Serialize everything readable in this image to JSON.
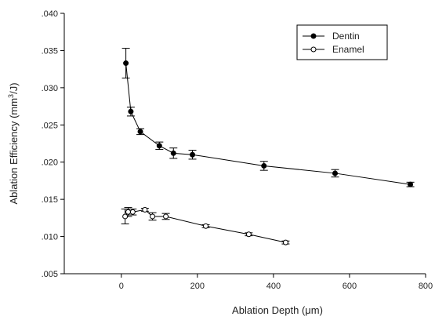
{
  "chart_data": {
    "type": "scatter",
    "xlabel_main": "Ablation Depth (",
    "xlabel_unit": "μm",
    "xlabel_close": ")",
    "ylabel_main": "Ablation Efficiency (mm",
    "ylabel_sup": "3",
    "ylabel_close": "/J)",
    "xlim": [
      -150,
      800
    ],
    "ylim": [
      0.005,
      0.04
    ],
    "x_ticks": [
      0,
      200,
      400,
      600,
      800
    ],
    "x_tick_labels": [
      "0",
      "200",
      "400",
      "600",
      "800"
    ],
    "y_ticks": [
      0.005,
      0.01,
      0.015,
      0.02,
      0.025,
      0.03,
      0.035,
      0.04
    ],
    "y_tick_labels": [
      ".005",
      ".010",
      ".015",
      ".020",
      ".025",
      ".030",
      ".035",
      ".040"
    ],
    "legend_position": "top-right",
    "grid": false,
    "series": [
      {
        "name": "Dentin",
        "marker": "filled-circle",
        "color": "#000000",
        "points": [
          {
            "x": 12,
            "y": 0.0333,
            "err": 0.002
          },
          {
            "x": 25,
            "y": 0.0268,
            "err": 0.0006
          },
          {
            "x": 50,
            "y": 0.0241,
            "err": 0.0004
          },
          {
            "x": 100,
            "y": 0.0222,
            "err": 0.0005
          },
          {
            "x": 137,
            "y": 0.0212,
            "err": 0.0007
          },
          {
            "x": 187,
            "y": 0.021,
            "err": 0.0006
          },
          {
            "x": 375,
            "y": 0.0195,
            "err": 0.0006
          },
          {
            "x": 562,
            "y": 0.0185,
            "err": 0.0005
          },
          {
            "x": 760,
            "y": 0.017,
            "err": 0.0003
          }
        ]
      },
      {
        "name": "Enamel",
        "marker": "open-circle",
        "color": "#000000",
        "points": [
          {
            "x": 10,
            "y": 0.0127,
            "err": 0.001
          },
          {
            "x": 18,
            "y": 0.0133,
            "err": 0.0006
          },
          {
            "x": 30,
            "y": 0.0133,
            "err": 0.0004
          },
          {
            "x": 62,
            "y": 0.0136,
            "err": 0.0002
          },
          {
            "x": 82,
            "y": 0.0127,
            "err": 0.0005
          },
          {
            "x": 117,
            "y": 0.0127,
            "err": 0.0004
          },
          {
            "x": 222,
            "y": 0.0114,
            "err": 0.0002
          },
          {
            "x": 335,
            "y": 0.0103,
            "err": 0.0002
          },
          {
            "x": 432,
            "y": 0.0092,
            "err": 0.0002
          }
        ]
      }
    ]
  }
}
